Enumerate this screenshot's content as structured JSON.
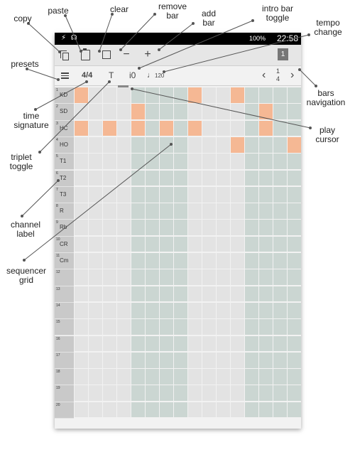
{
  "status": {
    "left": "⚡ ☊",
    "battery": "100%",
    "time": "22:58"
  },
  "toolbar": {
    "bar_indicator": "1"
  },
  "seqbar": {
    "presets_icon": "list-icon",
    "time_signature": "4/4",
    "triplet": "T",
    "intro": "i0",
    "tempo_note": "♩",
    "tempo_value": "120",
    "prev": "‹",
    "bar_num": "1",
    "bar_total": "4",
    "next": "›"
  },
  "channels": [
    {
      "num": "1",
      "name": "KD"
    },
    {
      "num": "2",
      "name": "SD"
    },
    {
      "num": "3",
      "name": "HC"
    },
    {
      "num": "4",
      "name": "HO"
    },
    {
      "num": "5",
      "name": "T1"
    },
    {
      "num": "6",
      "name": "T2"
    },
    {
      "num": "7",
      "name": "T3"
    },
    {
      "num": "8",
      "name": "R"
    },
    {
      "num": "9",
      "name": "Rb"
    },
    {
      "num": "10",
      "name": "CR"
    },
    {
      "num": "11",
      "name": "Cm"
    },
    {
      "num": "12",
      "name": ""
    },
    {
      "num": "13",
      "name": ""
    },
    {
      "num": "14",
      "name": ""
    },
    {
      "num": "15",
      "name": ""
    },
    {
      "num": "16",
      "name": ""
    },
    {
      "num": "17",
      "name": ""
    },
    {
      "num": "18",
      "name": ""
    },
    {
      "num": "19",
      "name": ""
    },
    {
      "num": "20",
      "name": ""
    }
  ],
  "active_cells": [
    [
      0,
      0
    ],
    [
      0,
      8
    ],
    [
      0,
      11
    ],
    [
      1,
      4
    ],
    [
      1,
      13
    ],
    [
      2,
      0
    ],
    [
      2,
      2
    ],
    [
      2,
      4
    ],
    [
      2,
      6
    ],
    [
      2,
      8
    ],
    [
      2,
      13
    ],
    [
      3,
      11
    ],
    [
      3,
      15
    ]
  ],
  "colors": {
    "active": "#f5b894",
    "light": "#e3e3e3",
    "teal": "#cbd6d2",
    "label": "#c9c9c9"
  },
  "callouts": {
    "copy": "copy",
    "paste": "paste",
    "clear": "clear",
    "remove_bar": "remove\nbar",
    "add_bar": "add\nbar",
    "intro_toggle": "intro bar\ntoggle",
    "tempo_change": "tempo\nchange",
    "presets": "presets",
    "bars_navigation": "bars\nnavigation",
    "time_signature": "time\nsignature",
    "play_cursor": "play\ncursor",
    "triplet_toggle": "triplet\ntoggle",
    "channel_label": "channel\nlabel",
    "sequencer_grid": "sequencer\ngrid"
  }
}
